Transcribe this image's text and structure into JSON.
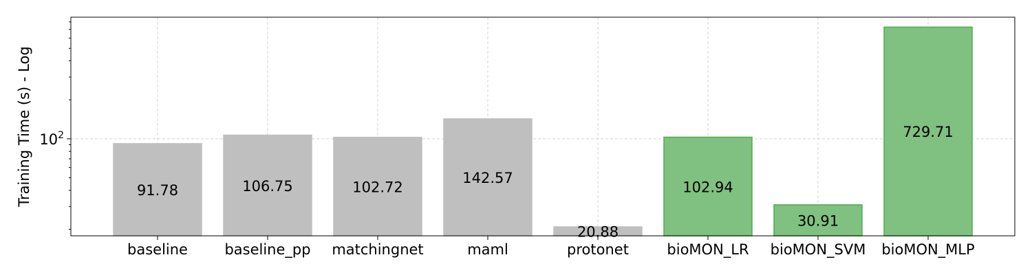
{
  "chart_data": {
    "type": "bar",
    "categories": [
      "baseline",
      "baseline_pp",
      "matchingnet",
      "maml",
      "protonet",
      "bioMON_LR",
      "bioMON_SVM",
      "bioMON_MLP"
    ],
    "values": [
      91.78,
      106.75,
      102.72,
      142.57,
      20.88,
      102.94,
      30.91,
      729.71
    ],
    "value_labels": [
      "91.78",
      "106.75",
      "102.72",
      "142.57",
      "20.88",
      "102.94",
      "30.91",
      "729.71"
    ],
    "bar_colors": [
      "#bfbfbf",
      "#bfbfbf",
      "#bfbfbf",
      "#bfbfbf",
      "#bfbfbf",
      "#80c080",
      "#80c080",
      "#80c080"
    ],
    "bar_edge_colors": [
      "#bfbfbf",
      "#bfbfbf",
      "#bfbfbf",
      "#bfbfbf",
      "#bfbfbf",
      "#4caf50",
      "#4caf50",
      "#4caf50"
    ],
    "ylabel": "Training Time (s) - Log",
    "xlabel": "",
    "title": "",
    "yscale": "log",
    "ylim": [
      17.8,
      870
    ],
    "yticks": [
      {
        "value": 100,
        "base": "10",
        "exponent": "2"
      }
    ],
    "grid": true
  }
}
